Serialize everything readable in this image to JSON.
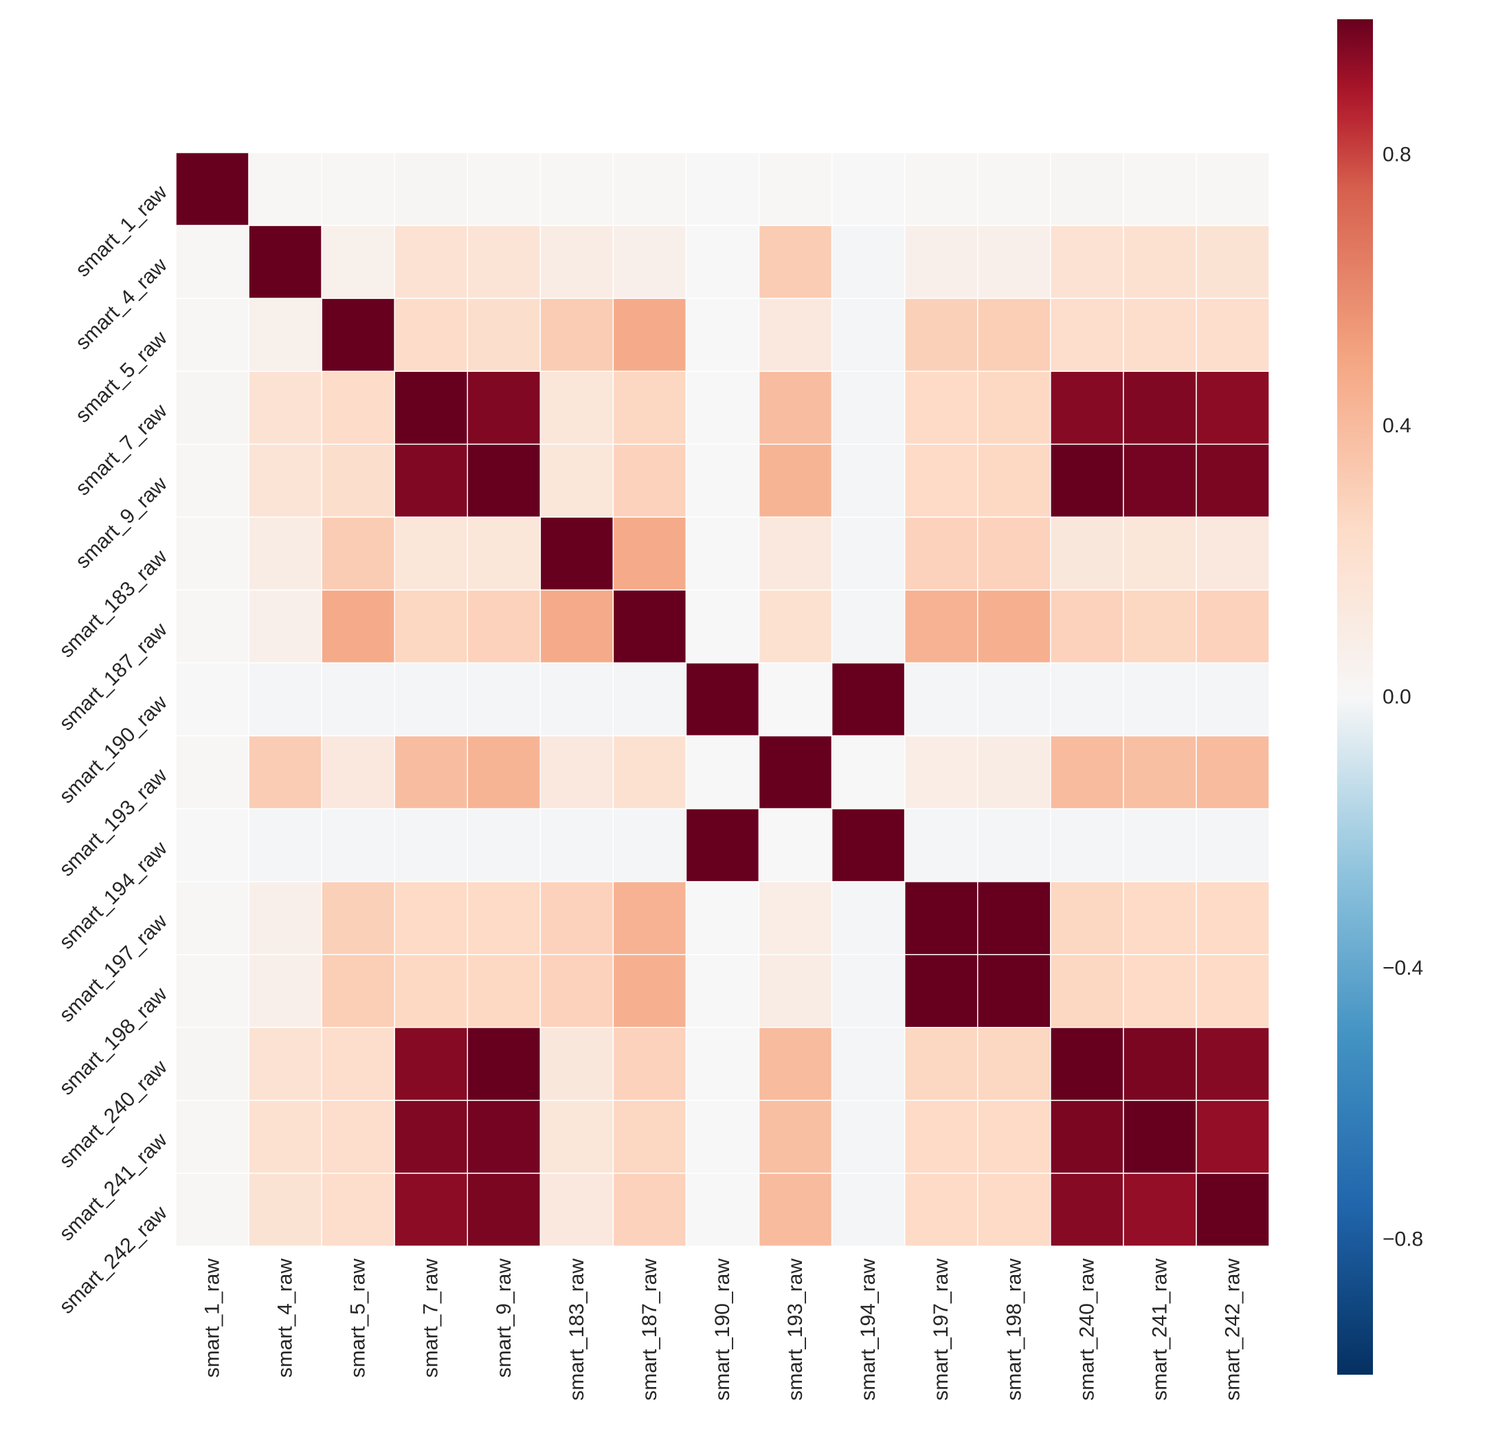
{
  "chart_data": {
    "type": "heatmap",
    "title": "",
    "xlabel": "",
    "ylabel": "",
    "labels": [
      "smart_1_raw",
      "smart_4_raw",
      "smart_5_raw",
      "smart_7_raw",
      "smart_9_raw",
      "smart_183_raw",
      "smart_187_raw",
      "smart_190_raw",
      "smart_193_raw",
      "smart_194_raw",
      "smart_197_raw",
      "smart_198_raw",
      "smart_240_raw",
      "smart_241_raw",
      "smart_242_raw"
    ],
    "matrix": [
      [
        1.0,
        0.01,
        0.01,
        0.02,
        0.01,
        0.01,
        0.01,
        0.0,
        0.01,
        0.0,
        0.01,
        0.01,
        0.02,
        0.01,
        0.01
      ],
      [
        0.01,
        1.0,
        0.06,
        0.19,
        0.17,
        0.1,
        0.07,
        0.0,
        0.32,
        -0.01,
        0.07,
        0.07,
        0.19,
        0.2,
        0.18
      ],
      [
        0.01,
        0.06,
        1.0,
        0.24,
        0.22,
        0.32,
        0.47,
        0.0,
        0.13,
        -0.01,
        0.3,
        0.31,
        0.23,
        0.23,
        0.23
      ],
      [
        0.02,
        0.19,
        0.24,
        1.0,
        0.96,
        0.15,
        0.27,
        0.0,
        0.39,
        -0.01,
        0.25,
        0.26,
        0.95,
        0.96,
        0.94
      ],
      [
        0.01,
        0.17,
        0.22,
        0.96,
        1.0,
        0.15,
        0.29,
        0.0,
        0.43,
        -0.01,
        0.25,
        0.26,
        1.0,
        0.98,
        0.97
      ],
      [
        0.01,
        0.1,
        0.32,
        0.15,
        0.15,
        1.0,
        0.47,
        0.0,
        0.13,
        -0.01,
        0.29,
        0.29,
        0.14,
        0.15,
        0.13
      ],
      [
        0.01,
        0.07,
        0.47,
        0.27,
        0.29,
        0.47,
        1.0,
        0.0,
        0.2,
        -0.01,
        0.44,
        0.45,
        0.29,
        0.27,
        0.29
      ],
      [
        0.0,
        -0.01,
        -0.01,
        -0.01,
        -0.01,
        -0.01,
        -0.01,
        1.0,
        0.0,
        1.0,
        -0.01,
        -0.01,
        -0.01,
        -0.01,
        -0.01
      ],
      [
        0.01,
        0.32,
        0.13,
        0.39,
        0.43,
        0.13,
        0.2,
        0.0,
        1.0,
        0.0,
        0.09,
        0.1,
        0.4,
        0.38,
        0.4
      ],
      [
        0.0,
        -0.01,
        -0.01,
        -0.01,
        -0.01,
        -0.01,
        -0.01,
        1.0,
        0.0,
        1.0,
        -0.01,
        -0.01,
        -0.01,
        -0.01,
        -0.01
      ],
      [
        0.01,
        0.07,
        0.3,
        0.25,
        0.25,
        0.29,
        0.44,
        0.0,
        0.09,
        -0.01,
        1.0,
        1.0,
        0.27,
        0.25,
        0.25
      ],
      [
        0.01,
        0.07,
        0.31,
        0.26,
        0.26,
        0.29,
        0.45,
        0.0,
        0.1,
        -0.01,
        1.0,
        1.0,
        0.27,
        0.25,
        0.25
      ],
      [
        0.02,
        0.19,
        0.23,
        0.95,
        1.0,
        0.14,
        0.29,
        0.0,
        0.4,
        -0.01,
        0.27,
        0.27,
        1.0,
        0.97,
        0.95
      ],
      [
        0.01,
        0.2,
        0.23,
        0.96,
        0.98,
        0.15,
        0.27,
        0.0,
        0.38,
        -0.01,
        0.25,
        0.25,
        0.97,
        1.0,
        0.93
      ],
      [
        0.01,
        0.18,
        0.23,
        0.94,
        0.97,
        0.13,
        0.29,
        0.0,
        0.4,
        -0.01,
        0.25,
        0.25,
        0.95,
        0.93,
        1.0
      ]
    ],
    "vmin": -1.0,
    "vmax": 1.0,
    "colormap": "RdBu_r",
    "colorbar": {
      "ticks": [
        0.8,
        0.4,
        0.0,
        -0.4,
        -0.8
      ],
      "tick_labels": [
        "0.8",
        "0.4",
        "0.0",
        "−0.4",
        "−0.8"
      ]
    }
  }
}
